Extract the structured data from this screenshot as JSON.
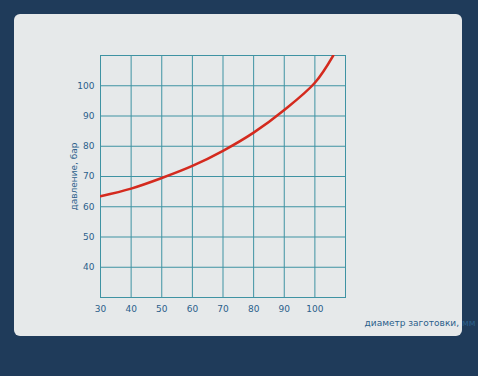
{
  "chart_data": {
    "type": "line",
    "x_label": "диаметр заготовки, мм",
    "y_label": "давление, бар",
    "x": [
      30,
      40,
      50,
      60,
      70,
      80,
      90,
      100,
      106
    ],
    "values": [
      63.5,
      66,
      69.5,
      73.5,
      78.5,
      84.5,
      92,
      101,
      110
    ],
    "color": "#d42a1e",
    "xlim": [
      30,
      110
    ],
    "ylim": [
      30,
      110
    ],
    "xticks": [
      30,
      40,
      50,
      60,
      70,
      80,
      90,
      100
    ],
    "yticks": [
      40,
      50,
      60,
      70,
      80,
      90,
      100
    ],
    "grid": true
  }
}
